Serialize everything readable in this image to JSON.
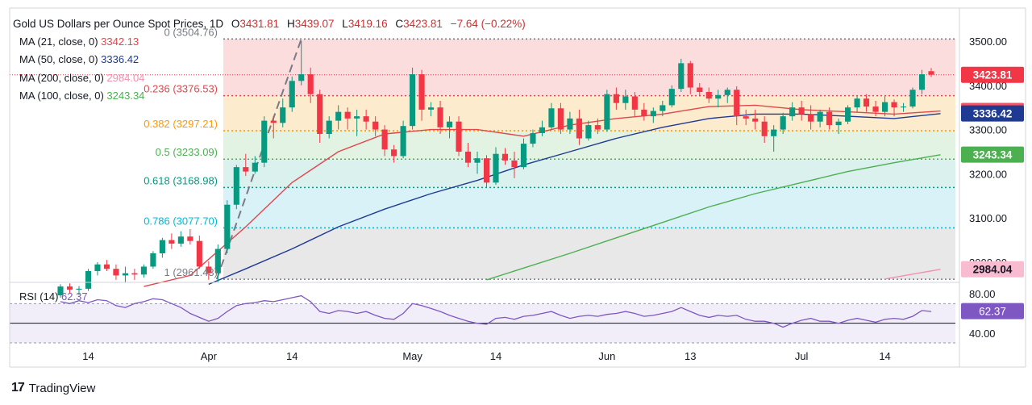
{
  "header": {
    "title": "Gold US Dollars per Ounce Spot Prices, 1D",
    "o_label": "O",
    "o": "3431.81",
    "h_label": "H",
    "h": "3439.07",
    "l_label": "L",
    "l": "3419.16",
    "c_label": "C",
    "c": "3423.81",
    "change": "−7.64 (−0.22%)"
  },
  "indicators": [
    {
      "label": "MA (21, close, 0)",
      "value": "3342.13",
      "color": "#e0474c"
    },
    {
      "label": "MA (50, close, 0)",
      "value": "3336.42",
      "color": "#1f3a93"
    },
    {
      "label": "MA (200, close, 0)",
      "value": "2984.04",
      "color": "#f48fb1"
    },
    {
      "label": "MA (100, close, 0)",
      "value": "3243.34",
      "color": "#4caf50"
    }
  ],
  "fib_levels": [
    {
      "label": "0 (3504.76)",
      "ratio": 0,
      "price": 3504.76,
      "color": "#787b86"
    },
    {
      "label": "0.236 (3376.53)",
      "ratio": 0.236,
      "price": 3376.53,
      "color": "#e0474c"
    },
    {
      "label": "0.382 (3297.21)",
      "ratio": 0.382,
      "price": 3297.21,
      "color": "#ff9800"
    },
    {
      "label": "0.5 (3233.09)",
      "ratio": 0.5,
      "price": 3233.09,
      "color": "#4caf50"
    },
    {
      "label": "0.618 (3168.98)",
      "ratio": 0.618,
      "price": 3168.98,
      "color": "#089981"
    },
    {
      "label": "0.786 (3077.70)",
      "ratio": 0.786,
      "price": 3077.7,
      "color": "#00bcd4"
    },
    {
      "label": "1 (2961.43)",
      "ratio": 1,
      "price": 2961.43,
      "color": "#787b86"
    }
  ],
  "price_badges": [
    {
      "text": "3423.81",
      "price": 3423.81,
      "color": "#f23645"
    },
    {
      "text": "3342.13",
      "price": 3342.13,
      "color": "#f7525f"
    },
    {
      "text": "3336.42",
      "price": 3336.42,
      "color": "#1f3a93"
    },
    {
      "text": "3243.34",
      "price": 3243.34,
      "color": "#4caf50"
    },
    {
      "text": "2984.04",
      "price": 2984.04,
      "color": "#f8bbd0",
      "text_color": "#131722"
    }
  ],
  "rsi": {
    "label": "RSI (14)",
    "value": "62.37",
    "color": "#7e57c2",
    "ticks": [
      "80.00",
      "40.00"
    ]
  },
  "brand": {
    "logo": "17",
    "name": "TradingView"
  },
  "chart_data": {
    "type": "candlestick",
    "title": "Gold US Dollars per Ounce Spot Prices, 1D",
    "y_ticks": [
      "3500.00",
      "3400.00",
      "3300.00",
      "3200.00",
      "3100.00",
      "3000.00"
    ],
    "ylim": [
      2958,
      3520
    ],
    "x_ticks": [
      {
        "label": "14",
        "index": 3
      },
      {
        "label": "Apr",
        "index": 16
      },
      {
        "label": "14",
        "index": 25
      },
      {
        "label": "May",
        "index": 38
      },
      {
        "label": "14",
        "index": 47
      },
      {
        "label": "Jun",
        "index": 59
      },
      {
        "label": "13",
        "index": 68
      },
      {
        "label": "Jul",
        "index": 80
      },
      {
        "label": "14",
        "index": 89
      }
    ],
    "candles": [
      [
        2925,
        2950,
        2920,
        2945
      ],
      [
        2945,
        2952,
        2930,
        2938
      ],
      [
        2938,
        2946,
        2925,
        2940
      ],
      [
        2940,
        2985,
        2935,
        2980
      ],
      [
        2980,
        3000,
        2970,
        2995
      ],
      [
        2995,
        3005,
        2980,
        2985
      ],
      [
        2985,
        2995,
        2960,
        2970
      ],
      [
        2970,
        2990,
        2955,
        2975
      ],
      [
        2975,
        2985,
        2960,
        2972
      ],
      [
        2972,
        2995,
        2965,
        2990
      ],
      [
        2990,
        3025,
        2985,
        3020
      ],
      [
        3020,
        3055,
        3010,
        3050
      ],
      [
        3050,
        3065,
        3030,
        3042
      ],
      [
        3042,
        3070,
        3035,
        3058
      ],
      [
        3058,
        3075,
        3040,
        3048
      ],
      [
        3048,
        3060,
        2985,
        2990
      ],
      [
        2990,
        3002,
        2960,
        2975
      ],
      [
        2975,
        3040,
        2955,
        3030
      ],
      [
        3030,
        3140,
        3020,
        3130
      ],
      [
        3130,
        3220,
        3120,
        3215
      ],
      [
        3215,
        3245,
        3195,
        3205
      ],
      [
        3205,
        3240,
        3200,
        3225
      ],
      [
        3225,
        3330,
        3215,
        3320
      ],
      [
        3320,
        3330,
        3280,
        3315
      ],
      [
        3315,
        3370,
        3305,
        3350
      ],
      [
        3350,
        3420,
        3340,
        3410
      ],
      [
        3410,
        3500,
        3400,
        3425
      ],
      [
        3425,
        3440,
        3360,
        3380
      ],
      [
        3380,
        3390,
        3270,
        3290
      ],
      [
        3290,
        3330,
        3280,
        3320
      ],
      [
        3320,
        3355,
        3300,
        3340
      ],
      [
        3340,
        3350,
        3300,
        3325
      ],
      [
        3325,
        3345,
        3285,
        3330
      ],
      [
        3330,
        3345,
        3300,
        3318
      ],
      [
        3318,
        3330,
        3285,
        3300
      ],
      [
        3300,
        3310,
        3240,
        3255
      ],
      [
        3255,
        3265,
        3225,
        3240
      ],
      [
        3240,
        3320,
        3235,
        3308
      ],
      [
        3308,
        3440,
        3300,
        3425
      ],
      [
        3425,
        3435,
        3320,
        3345
      ],
      [
        3345,
        3362,
        3330,
        3350
      ],
      [
        3350,
        3365,
        3290,
        3305
      ],
      [
        3305,
        3330,
        3280,
        3318
      ],
      [
        3318,
        3330,
        3240,
        3250
      ],
      [
        3250,
        3270,
        3215,
        3225
      ],
      [
        3225,
        3250,
        3200,
        3235
      ],
      [
        3235,
        3242,
        3170,
        3180
      ],
      [
        3180,
        3260,
        3175,
        3245
      ],
      [
        3245,
        3258,
        3220,
        3230
      ],
      [
        3230,
        3250,
        3190,
        3215
      ],
      [
        3215,
        3280,
        3210,
        3268
      ],
      [
        3268,
        3300,
        3260,
        3292
      ],
      [
        3292,
        3320,
        3285,
        3305
      ],
      [
        3305,
        3360,
        3300,
        3348
      ],
      [
        3348,
        3360,
        3290,
        3300
      ],
      [
        3300,
        3340,
        3290,
        3325
      ],
      [
        3325,
        3345,
        3265,
        3280
      ],
      [
        3280,
        3320,
        3275,
        3310
      ],
      [
        3310,
        3325,
        3290,
        3300
      ],
      [
        3300,
        3390,
        3295,
        3380
      ],
      [
        3380,
        3395,
        3345,
        3360
      ],
      [
        3360,
        3390,
        3345,
        3375
      ],
      [
        3375,
        3385,
        3330,
        3345
      ],
      [
        3345,
        3360,
        3320,
        3330
      ],
      [
        3330,
        3350,
        3315,
        3342
      ],
      [
        3342,
        3365,
        3330,
        3355
      ],
      [
        3355,
        3400,
        3350,
        3392
      ],
      [
        3392,
        3460,
        3385,
        3450
      ],
      [
        3450,
        3455,
        3380,
        3395
      ],
      [
        3395,
        3405,
        3375,
        3385
      ],
      [
        3385,
        3395,
        3360,
        3370
      ],
      [
        3370,
        3390,
        3350,
        3378
      ],
      [
        3378,
        3395,
        3360,
        3390
      ],
      [
        3390,
        3398,
        3310,
        3330
      ],
      [
        3330,
        3345,
        3310,
        3325
      ],
      [
        3325,
        3345,
        3300,
        3318
      ],
      [
        3318,
        3330,
        3270,
        3285
      ],
      [
        3285,
        3310,
        3250,
        3300
      ],
      [
        3300,
        3338,
        3290,
        3330
      ],
      [
        3330,
        3362,
        3320,
        3350
      ],
      [
        3350,
        3365,
        3320,
        3335
      ],
      [
        3335,
        3355,
        3300,
        3318
      ],
      [
        3318,
        3345,
        3305,
        3340
      ],
      [
        3340,
        3350,
        3300,
        3310
      ],
      [
        3310,
        3325,
        3290,
        3318
      ],
      [
        3318,
        3355,
        3312,
        3350
      ],
      [
        3350,
        3375,
        3340,
        3370
      ],
      [
        3370,
        3380,
        3340,
        3352
      ],
      [
        3352,
        3365,
        3330,
        3340
      ],
      [
        3340,
        3375,
        3330,
        3362
      ],
      [
        3362,
        3368,
        3330,
        3350
      ],
      [
        3350,
        3360,
        3340,
        3352
      ],
      [
        3352,
        3395,
        3348,
        3390
      ],
      [
        3390,
        3435,
        3380,
        3425
      ],
      [
        3432,
        3439,
        3419,
        3424
      ]
    ],
    "ma": [
      {
        "name": "MA (21, close, 0)",
        "color": "#e0474c",
        "start": 9,
        "points": [
          [
            9,
            2945
          ],
          [
            14,
            2970
          ],
          [
            20,
            3080
          ],
          [
            25,
            3180
          ],
          [
            30,
            3250
          ],
          [
            35,
            3290
          ],
          [
            40,
            3300
          ],
          [
            45,
            3300
          ],
          [
            50,
            3285
          ],
          [
            55,
            3310
          ],
          [
            60,
            3325
          ],
          [
            65,
            3335
          ],
          [
            70,
            3352
          ],
          [
            75,
            3355
          ],
          [
            80,
            3345
          ],
          [
            85,
            3340
          ],
          [
            90,
            3335
          ],
          [
            95,
            3342
          ]
        ]
      },
      {
        "name": "MA (50, close, 0)",
        "color": "#1f3a93",
        "start": 16,
        "points": [
          [
            16,
            2950
          ],
          [
            20,
            2985
          ],
          [
            25,
            3030
          ],
          [
            30,
            3080
          ],
          [
            35,
            3120
          ],
          [
            40,
            3155
          ],
          [
            45,
            3185
          ],
          [
            50,
            3220
          ],
          [
            55,
            3250
          ],
          [
            60,
            3280
          ],
          [
            65,
            3305
          ],
          [
            70,
            3325
          ],
          [
            75,
            3335
          ],
          [
            80,
            3335
          ],
          [
            85,
            3330
          ],
          [
            90,
            3325
          ],
          [
            95,
            3336
          ]
        ]
      },
      {
        "name": "MA (100, close, 0)",
        "color": "#4caf50",
        "start": 46,
        "points": [
          [
            46,
            2960
          ],
          [
            55,
            3020
          ],
          [
            60,
            3055
          ],
          [
            65,
            3090
          ],
          [
            70,
            3125
          ],
          [
            75,
            3155
          ],
          [
            80,
            3180
          ],
          [
            85,
            3205
          ],
          [
            90,
            3225
          ],
          [
            95,
            3243
          ]
        ]
      },
      {
        "name": "MA (200, close, 0)",
        "color": "#f48fb1",
        "start": 89,
        "points": [
          [
            89,
            2962
          ],
          [
            95,
            2984
          ]
        ]
      }
    ],
    "swing_line": {
      "from": [
        16,
        2961.43
      ],
      "to": [
        26,
        3504.76
      ]
    },
    "rsi_series": [
      72,
      70,
      73,
      71,
      74,
      73,
      68,
      66,
      70,
      72,
      75,
      74,
      70,
      66,
      60,
      56,
      52,
      55,
      62,
      68,
      70,
      71,
      73,
      72,
      74,
      76,
      78,
      72,
      62,
      60,
      63,
      62,
      60,
      62,
      58,
      55,
      54,
      60,
      70,
      68,
      65,
      62,
      58,
      55,
      52,
      50,
      49,
      55,
      56,
      54,
      57,
      58,
      60,
      62,
      58,
      55,
      57,
      58,
      57,
      59,
      60,
      62,
      60,
      57,
      58,
      60,
      62,
      66,
      62,
      58,
      56,
      58,
      57,
      58,
      54,
      52,
      52,
      50,
      46,
      50,
      53,
      55,
      52,
      52,
      50,
      53,
      55,
      53,
      51,
      54,
      55,
      54,
      57,
      63,
      62
    ]
  }
}
